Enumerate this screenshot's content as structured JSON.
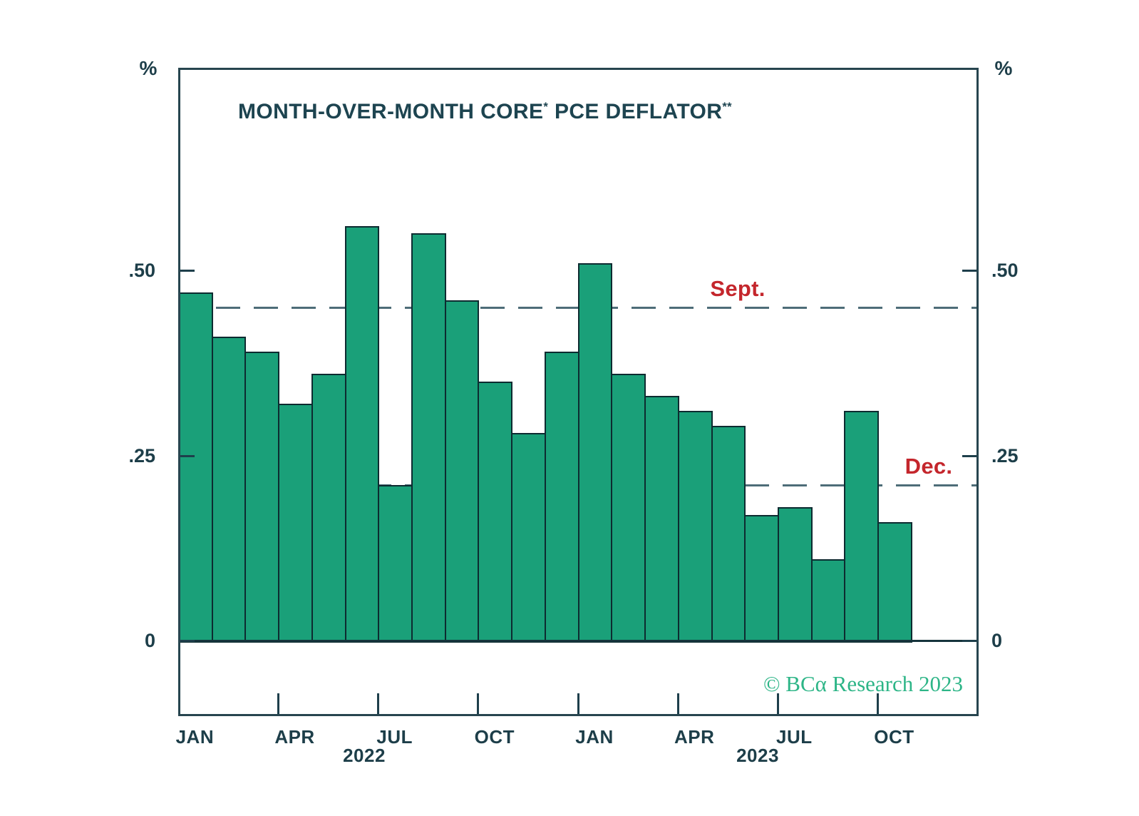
{
  "title_parts": {
    "main": "MONTH-OVER-MONTH CORE",
    "sup1": "*",
    "mid": " PCE DEFLATOR",
    "sup2": "**"
  },
  "axis_units": {
    "left": "%",
    "right": "%"
  },
  "footer": {
    "copyright": "© BCα Research 2023"
  },
  "colors": {
    "bar_fill": "#1aa079",
    "bar_border": "#0d2b30",
    "axis_dark": "#1e3f4b",
    "reference_red": "#c4262c",
    "dashed_line": "#4e6d78",
    "logo_green": "#2db587",
    "background": "#ffffff"
  },
  "chart_data": {
    "type": "bar",
    "title": "MONTH-OVER-MONTH CORE* PCE DEFLATOR**",
    "xlabel": "",
    "ylabel": "%",
    "ylim": [
      0,
      0.775
    ],
    "grid": false,
    "categories": [
      "Jan 2022",
      "Feb 2022",
      "Mar 2022",
      "Apr 2022",
      "May 2022",
      "Jun 2022",
      "Jul 2022",
      "Aug 2022",
      "Sep 2022",
      "Oct 2022",
      "Nov 2022",
      "Dec 2022",
      "Jan 2023",
      "Feb 2023",
      "Mar 2023",
      "Apr 2023",
      "May 2023",
      "Jun 2023",
      "Jul 2023",
      "Aug 2023",
      "Sep 2023",
      "Oct 2023"
    ],
    "values": [
      0.47,
      0.41,
      0.39,
      0.32,
      0.36,
      0.56,
      0.21,
      0.55,
      0.46,
      0.35,
      0.28,
      0.39,
      0.51,
      0.36,
      0.33,
      0.31,
      0.29,
      0.17,
      0.18,
      0.11,
      0.31,
      0.16
    ],
    "yticks": [
      {
        "value": 0.0,
        "label": "0"
      },
      {
        "value": 0.25,
        "label": ".25"
      },
      {
        "value": 0.5,
        "label": ".50"
      }
    ],
    "x_labels": [
      {
        "text": "JAN",
        "bar": 0
      },
      {
        "text": "APR",
        "bar": 3
      },
      {
        "text": "JUL",
        "bar": 6
      },
      {
        "text": "OCT",
        "bar": 9
      },
      {
        "text": "JAN",
        "bar": 12
      },
      {
        "text": "APR",
        "bar": 15
      },
      {
        "text": "JUL",
        "bar": 18
      },
      {
        "text": "OCT",
        "bar": 21
      }
    ],
    "x_tick_bars": [
      3,
      6,
      9,
      12,
      15,
      18,
      21
    ],
    "year_labels": [
      {
        "text": "2022"
      },
      {
        "text": "2023"
      }
    ],
    "reference_lines": [
      {
        "label": "Sept.",
        "value": 0.45
      },
      {
        "label": "Dec.",
        "value": 0.21
      }
    ],
    "legend_position": "none"
  }
}
